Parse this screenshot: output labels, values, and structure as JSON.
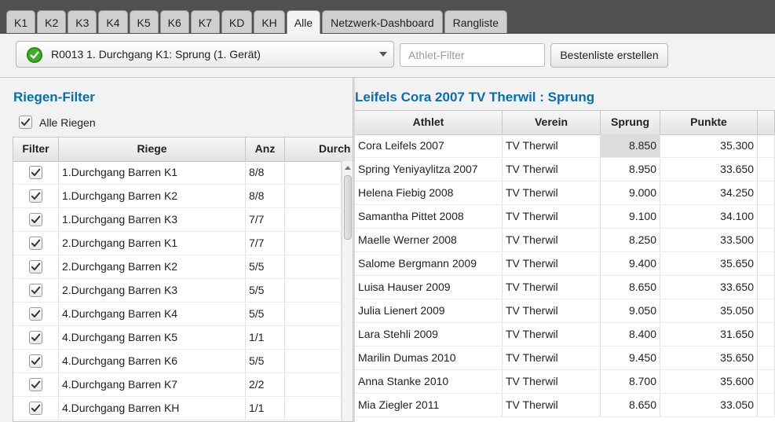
{
  "tabs": [
    "K1",
    "K2",
    "K3",
    "K4",
    "K5",
    "K6",
    "K7",
    "KD",
    "KH",
    "Alle",
    "Netzwerk-Dashboard",
    "Rangliste"
  ],
  "active_tab": "Alle",
  "toolbar": {
    "durchgang": "R0013 1. Durchgang K1: Sprung  (1. Gerät)",
    "athlet_filter_placeholder": "Athlet-Filter",
    "bestenliste_label": "Bestenliste erstellen"
  },
  "riegen": {
    "title": "Riegen-Filter",
    "alle_label": "Alle Riegen",
    "alle_checked": true,
    "columns": [
      "Filter",
      "Riege",
      "Anz",
      "Durch"
    ],
    "rows": [
      {
        "riege": "1.Durchgang Barren K1",
        "anz": "8/8",
        "checked": true
      },
      {
        "riege": "1.Durchgang Barren K2",
        "anz": "8/8",
        "checked": true
      },
      {
        "riege": "1.Durchgang Barren K3",
        "anz": "7/7",
        "checked": true
      },
      {
        "riege": "2.Durchgang Barren K1",
        "anz": "7/7",
        "checked": true
      },
      {
        "riege": "2.Durchgang Barren K2",
        "anz": "5/5",
        "checked": true
      },
      {
        "riege": "2.Durchgang Barren K3",
        "anz": "5/5",
        "checked": true
      },
      {
        "riege": "4.Durchgang Barren K4",
        "anz": "5/5",
        "checked": true
      },
      {
        "riege": "4.Durchgang Barren K5",
        "anz": "1/1",
        "checked": true
      },
      {
        "riege": "4.Durchgang Barren K6",
        "anz": "5/5",
        "checked": true
      },
      {
        "riege": "4.Durchgang Barren K7",
        "anz": "2/2",
        "checked": true
      },
      {
        "riege": "4.Durchgang Barren KH",
        "anz": "1/1",
        "checked": true
      }
    ]
  },
  "results": {
    "title": "Leifels Cora 2007 TV Therwil : Sprung",
    "columns": [
      "Athlet",
      "Verein",
      "Sprung",
      "Punkte"
    ],
    "rows": [
      {
        "athlet": "Cora Leifels 2007",
        "verein": "TV Therwil",
        "sprung": "8.850",
        "punkte": "35.300"
      },
      {
        "athlet": "Spring Yeniyaylitza 2007",
        "verein": "TV Therwil",
        "sprung": "8.950",
        "punkte": "33.650"
      },
      {
        "athlet": "Helena Fiebig 2008",
        "verein": "TV Therwil",
        "sprung": "9.000",
        "punkte": "34.250"
      },
      {
        "athlet": "Samantha Pittet 2008",
        "verein": "TV Therwil",
        "sprung": "9.100",
        "punkte": "34.100"
      },
      {
        "athlet": "Maelle Werner 2008",
        "verein": "TV Therwil",
        "sprung": "8.250",
        "punkte": "33.500"
      },
      {
        "athlet": "Salome Bergmann 2009",
        "verein": "TV Therwil",
        "sprung": "9.400",
        "punkte": "35.650"
      },
      {
        "athlet": "Luisa Hauser 2009",
        "verein": "TV Therwil",
        "sprung": "8.650",
        "punkte": "33.650"
      },
      {
        "athlet": "Julia Lienert 2009",
        "verein": "TV Therwil",
        "sprung": "9.050",
        "punkte": "35.050"
      },
      {
        "athlet": "Lara Stehli 2009",
        "verein": "TV Therwil",
        "sprung": "8.400",
        "punkte": "31.650"
      },
      {
        "athlet": "Marilin Dumas 2010",
        "verein": "TV Therwil",
        "sprung": "9.450",
        "punkte": "35.650"
      },
      {
        "athlet": "Anna Stanke 2010",
        "verein": "TV Therwil",
        "sprung": "8.700",
        "punkte": "35.600"
      },
      {
        "athlet": "Mia Ziegler 2011",
        "verein": "TV Therwil",
        "sprung": "8.650",
        "punkte": "33.050"
      }
    ]
  },
  "colors": {
    "accent": "#0b6ea9",
    "ok": "#3fae29"
  },
  "icons": {
    "status": "check-circle-icon",
    "dropdown": "chevron-down-icon",
    "checkbox": "checkbox-checked-icon"
  }
}
